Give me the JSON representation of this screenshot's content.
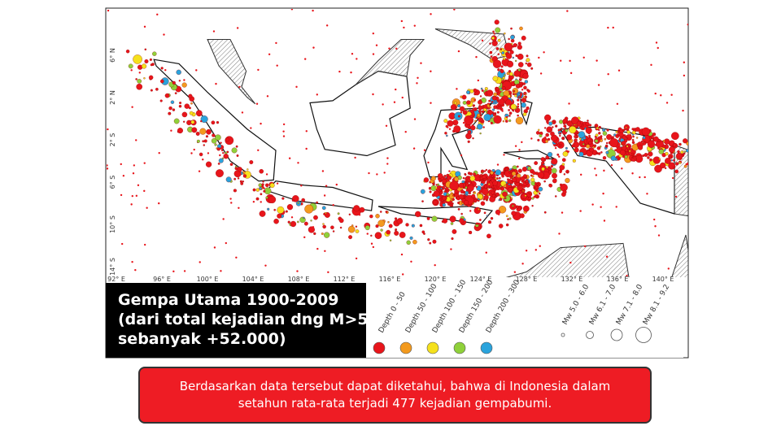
{
  "map": {
    "x_labels": [
      "92° E",
      "96° E",
      "100° E",
      "104° E",
      "108° E",
      "112° E",
      "116° E",
      "120° E",
      "124° E",
      "128° E",
      "132° E",
      "136° E",
      "140° E"
    ],
    "y_labels": [
      "6° N",
      "2° N",
      "2° S",
      "6° S",
      "10° S",
      "14° S"
    ]
  },
  "caption": {
    "lines": [
      "Gempa Utama 1900-2009",
      "(dari total kejadian dng M>5",
      "sebanyak +52.000)"
    ]
  },
  "legend": {
    "depth": [
      {
        "label": "Depth 0 - 50",
        "color": "#e8151b"
      },
      {
        "label": "Depth 50 - 100",
        "color": "#f39a1e"
      },
      {
        "label": "Depth 100 - 150",
        "color": "#f5e11c"
      },
      {
        "label": "Depth 150 - 200",
        "color": "#8fd13a"
      },
      {
        "label": "Depth 200 - 300",
        "color": "#2aa3dc"
      }
    ],
    "magnitude": [
      {
        "label": "Mw 5.0 - 6.0"
      },
      {
        "label": "Mw 6.1 - 7.0"
      },
      {
        "label": "Mw 7.1 - 8.0"
      },
      {
        "label": "Mw 8.1 - 9.2"
      }
    ]
  },
  "note": "Berdasarkan data tersebut dapat diketahui, bahwa di Indonesia dalam setahun rata-rata terjadi 477 kejadian gempabumi."
}
